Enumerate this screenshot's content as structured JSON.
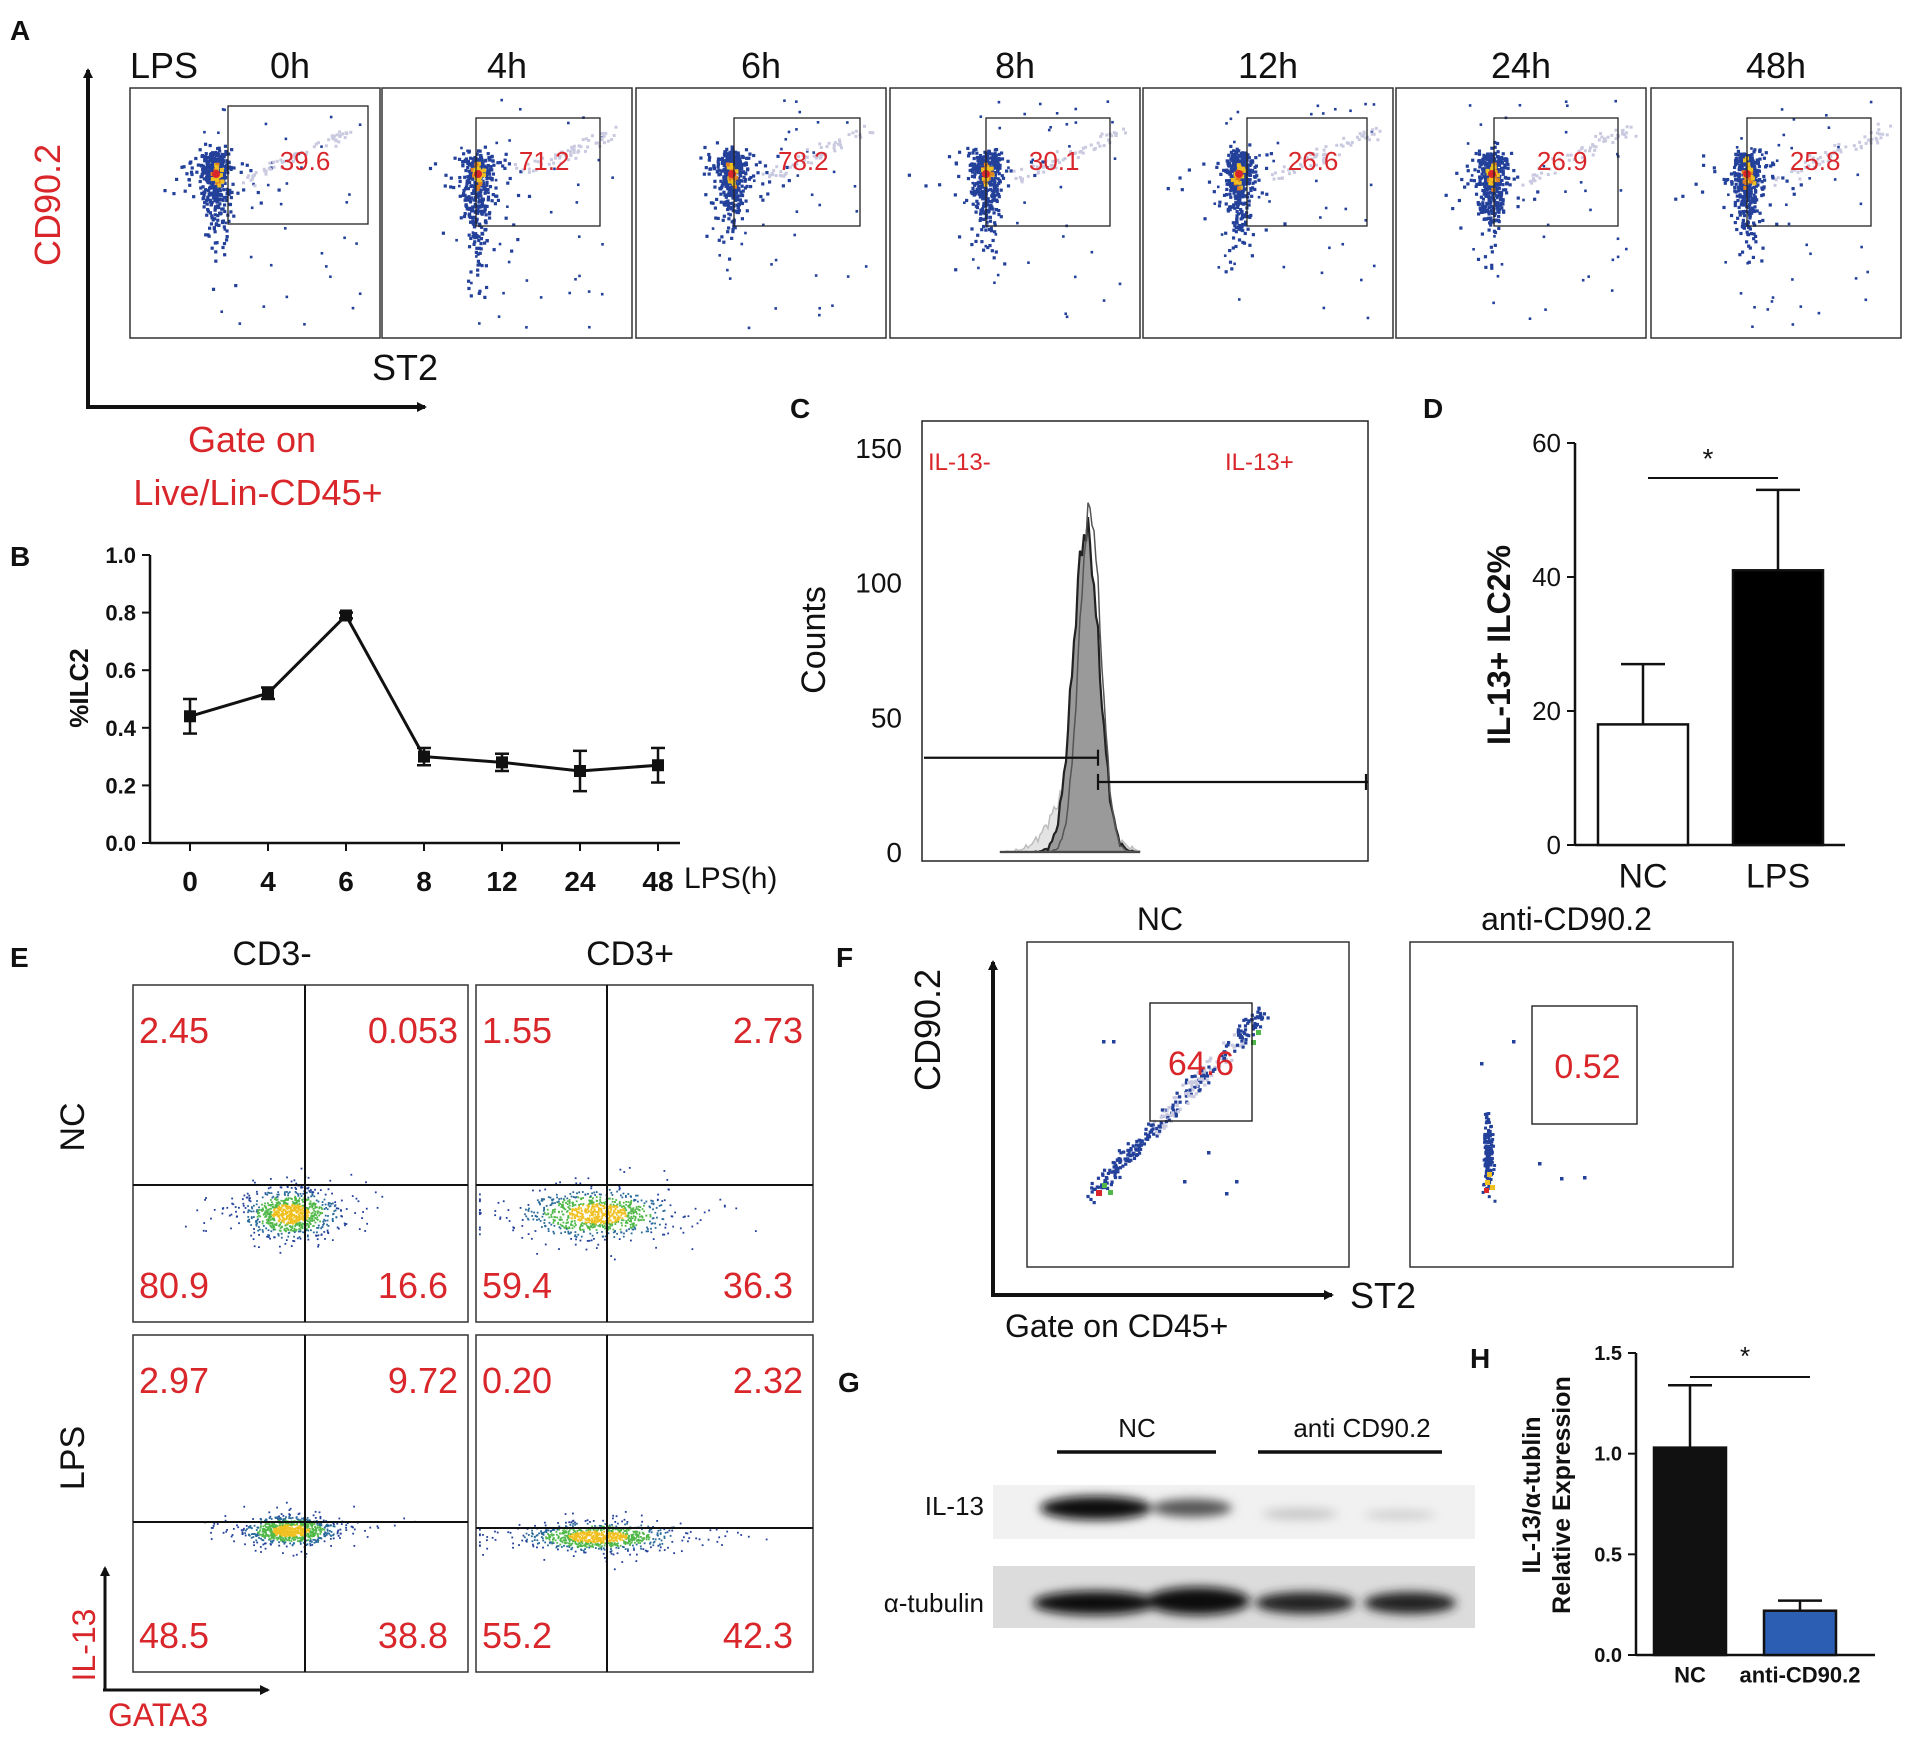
{
  "figure": {
    "panel_labels": {
      "A": "A",
      "B": "B",
      "C": "C",
      "D": "D",
      "E": "E",
      "F": "F",
      "G": "G",
      "H": "H"
    },
    "colors": {
      "red": "#d9262b",
      "gate_red": "#e0303a",
      "blue": "#23409a",
      "yellow": "#f0c020",
      "orange": "#e08020",
      "green": "#50b848",
      "bar_blue": "#2c5fb4",
      "black": "#111111"
    }
  },
  "panel_a": {
    "y_axis_label": "CD90.2",
    "x_axis_label": "ST2",
    "gate_caption_line1": "Gate on",
    "gate_caption_line2": "Live/Lin-CD45+",
    "lps_label": "LPS",
    "timepoints": [
      {
        "time": "0h",
        "gate_value": "39.6"
      },
      {
        "time": "4h",
        "gate_value": "71.2"
      },
      {
        "time": "6h",
        "gate_value": "78.2"
      },
      {
        "time": "8h",
        "gate_value": "30.1"
      },
      {
        "time": "12h",
        "gate_value": "26.6"
      },
      {
        "time": "24h",
        "gate_value": "26.9"
      },
      {
        "time": "48h",
        "gate_value": "25.8"
      }
    ]
  },
  "chart_data": [
    {
      "panel": "B",
      "type": "line",
      "xlabel": "LPS(h)",
      "ylabel": "%ILC2",
      "categories": [
        "0",
        "4",
        "6",
        "8",
        "12",
        "24",
        "48"
      ],
      "values": [
        0.44,
        0.52,
        0.79,
        0.3,
        0.28,
        0.25,
        0.27
      ],
      "errors": [
        0.06,
        0.02,
        0.01,
        0.03,
        0.03,
        0.07,
        0.06
      ],
      "ylim": [
        0.0,
        1.0
      ],
      "yticks": [
        "0.0",
        "0.2",
        "0.4",
        "0.6",
        "0.8",
        "1.0"
      ]
    },
    {
      "panel": "C",
      "type": "histogram",
      "ylabel": "Counts",
      "yticks": [
        "0",
        "50",
        "100",
        "150"
      ],
      "ylim": [
        0,
        160
      ],
      "gate_labels": [
        "IL-13-",
        "IL-13+"
      ],
      "peak_count": 127
    },
    {
      "panel": "D",
      "type": "bar",
      "ylabel": "IL-13+ ILC2%",
      "categories": [
        "NC",
        "LPS"
      ],
      "values": [
        18,
        41
      ],
      "errors": [
        9,
        12
      ],
      "ylim": [
        0,
        60
      ],
      "yticks": [
        "0",
        "20",
        "40",
        "60"
      ],
      "significance": "*"
    },
    {
      "panel": "H",
      "type": "bar",
      "ylabel_line1": "IL-13/α-tublin",
      "ylabel_line2": "Relative Expression",
      "categories": [
        "NC",
        "anti-CD90.2"
      ],
      "values": [
        1.03,
        0.22
      ],
      "errors": [
        0.31,
        0.05
      ],
      "ylim": [
        0,
        1.5
      ],
      "yticks": [
        "0.0",
        "0.5",
        "1.0",
        "1.5"
      ],
      "significance": "*"
    }
  ],
  "panel_e": {
    "column_headers": [
      "CD3-",
      "CD3+"
    ],
    "row_headers": [
      "NC",
      "LPS"
    ],
    "y_axis_label": "IL-13",
    "x_axis_label": "GATA3",
    "quadrants": [
      {
        "row": "NC",
        "col": "CD3-",
        "ul": "2.45",
        "ur": "0.053",
        "ll": "80.9",
        "lr": "16.6"
      },
      {
        "row": "NC",
        "col": "CD3+",
        "ul": "1.55",
        "ur": "2.73",
        "ll": "59.4",
        "lr": "36.3"
      },
      {
        "row": "LPS",
        "col": "CD3-",
        "ul": "2.97",
        "ur": "9.72",
        "ll": "48.5",
        "lr": "38.8"
      },
      {
        "row": "LPS",
        "col": "CD3+",
        "ul": "0.20",
        "ur": "2.32",
        "ll": "55.2",
        "lr": "42.3"
      }
    ]
  },
  "panel_f": {
    "y_axis_label": "CD90.2",
    "x_axis_label": "ST2",
    "gate_caption": "Gate on CD45+",
    "plots": [
      {
        "title": "NC",
        "gate_value": "64.6"
      },
      {
        "title": "anti-CD90.2",
        "gate_value": "0.52"
      }
    ]
  },
  "panel_g": {
    "group_labels": [
      "NC",
      "anti CD90.2"
    ],
    "band_labels": [
      "IL-13",
      "α-tubulin"
    ]
  }
}
